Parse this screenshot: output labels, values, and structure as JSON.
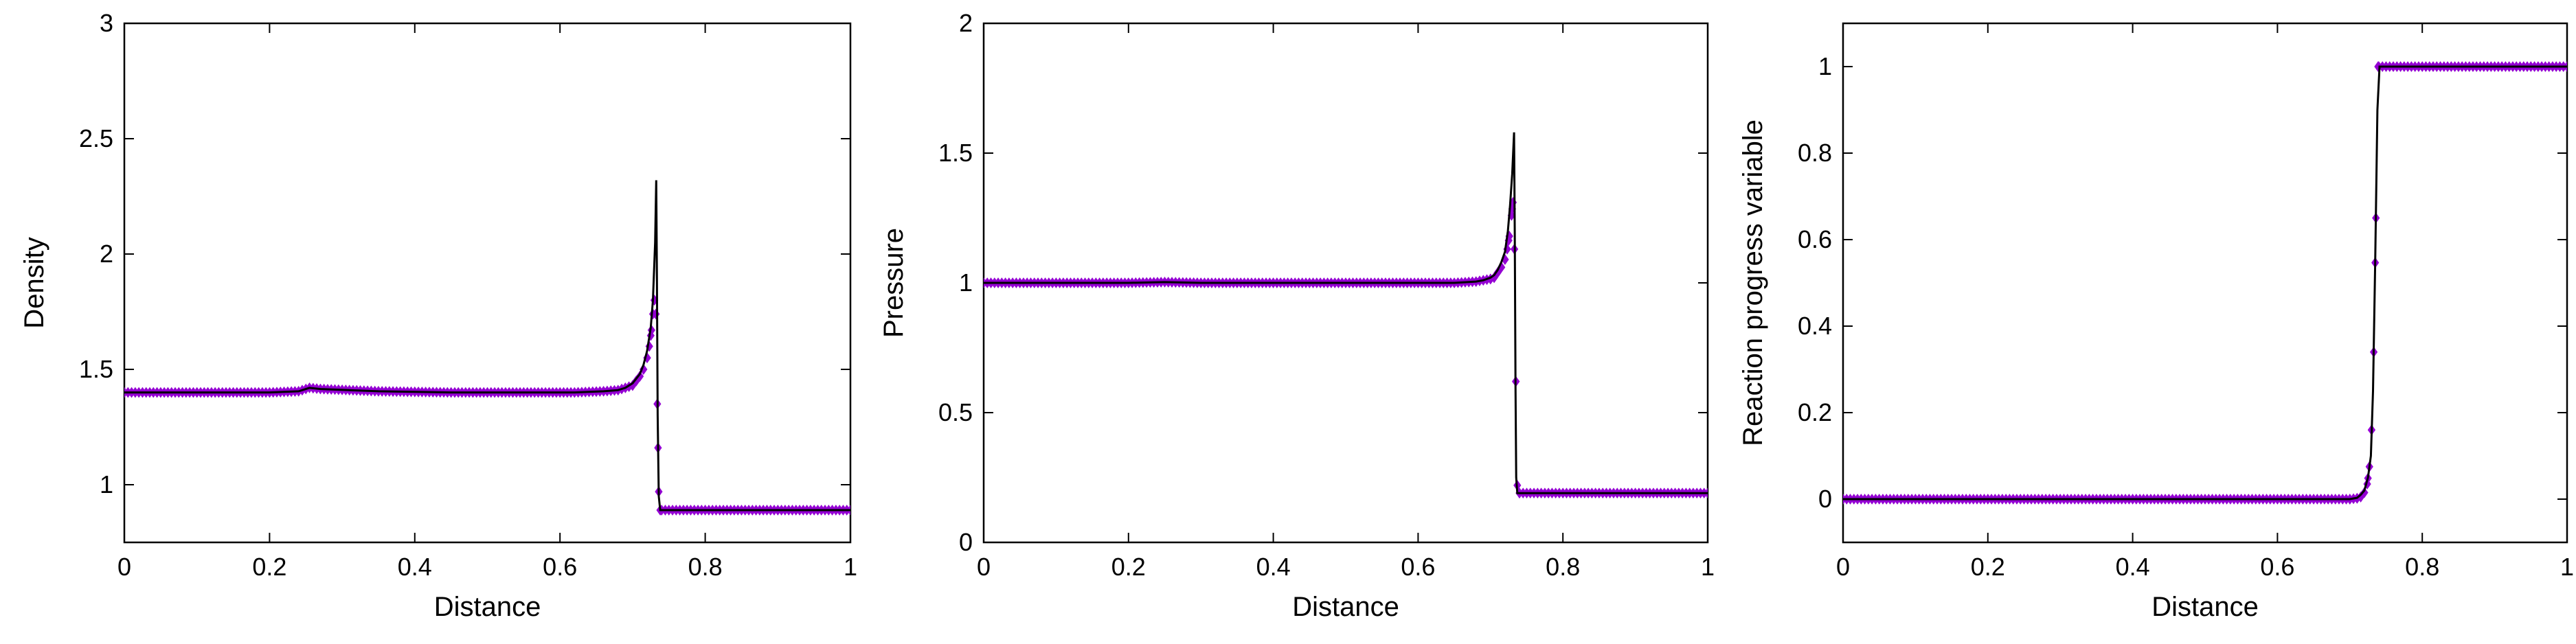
{
  "colors": {
    "reference_line": "#000000",
    "markers": "#9400d3"
  },
  "chart_data": [
    {
      "type": "line",
      "xlabel": "Distance",
      "ylabel": "Density",
      "xlim": [
        0,
        1
      ],
      "ylim": [
        0.75,
        3
      ],
      "xticks": [
        "0",
        "0.2",
        "0.4",
        "0.6",
        "0.8",
        "1"
      ],
      "yticks": [
        "1",
        "1.5",
        "2",
        "2.5",
        "3"
      ],
      "grid": false,
      "series": [
        {
          "style": "line",
          "x": [
            0,
            0.1,
            0.2,
            0.24,
            0.255,
            0.27,
            0.35,
            0.45,
            0.55,
            0.62,
            0.66,
            0.68,
            0.69,
            0.7,
            0.71,
            0.715,
            0.72,
            0.725,
            0.728,
            0.731,
            0.7325,
            0.7335,
            0.7345,
            0.736,
            0.738,
            0.741,
            0.75,
            0.85,
            1.0
          ],
          "y": [
            1.4,
            1.4,
            1.4,
            1.405,
            1.42,
            1.415,
            1.405,
            1.4,
            1.4,
            1.4,
            1.405,
            1.41,
            1.42,
            1.44,
            1.48,
            1.52,
            1.58,
            1.68,
            1.8,
            2.05,
            2.32,
            1.9,
            1.3,
            0.95,
            0.89,
            0.89,
            0.89,
            0.89,
            0.89
          ]
        },
        {
          "style": "markers",
          "x": [
            0,
            0.1,
            0.2,
            0.24,
            0.255,
            0.27,
            0.35,
            0.45,
            0.55,
            0.62,
            0.66,
            0.68,
            0.69,
            0.7,
            0.705,
            0.71,
            0.715,
            0.72,
            0.723,
            0.726,
            0.728,
            0.73,
            0.732,
            0.734,
            0.736,
            0.738,
            0.75,
            0.85,
            1.0
          ],
          "y": [
            1.4,
            1.4,
            1.4,
            1.405,
            1.42,
            1.415,
            1.405,
            1.4,
            1.4,
            1.4,
            1.405,
            1.41,
            1.42,
            1.43,
            1.45,
            1.47,
            1.5,
            1.55,
            1.6,
            1.67,
            1.74,
            1.8,
            1.74,
            1.35,
            0.97,
            0.89,
            0.89,
            0.89,
            0.89
          ]
        }
      ]
    },
    {
      "type": "line",
      "xlabel": "Distance",
      "ylabel": "Pressure",
      "xlim": [
        0,
        1
      ],
      "ylim": [
        0,
        2
      ],
      "xticks": [
        "0",
        "0.2",
        "0.4",
        "0.6",
        "0.8",
        "1"
      ],
      "yticks": [
        "0",
        "0.5",
        "1",
        "1.5",
        "2"
      ],
      "grid": false,
      "series": [
        {
          "style": "line",
          "x": [
            0,
            0.1,
            0.2,
            0.25,
            0.3,
            0.4,
            0.5,
            0.6,
            0.65,
            0.68,
            0.69,
            0.7,
            0.705,
            0.71,
            0.715,
            0.72,
            0.724,
            0.727,
            0.73,
            0.7325,
            0.7335,
            0.7345,
            0.7355,
            0.737,
            0.74,
            0.75,
            0.85,
            1.0
          ],
          "y": [
            1.0,
            1.0,
            1.0,
            1.003,
            1.0,
            1.0,
            1.0,
            1.0,
            1.0,
            1.005,
            1.01,
            1.02,
            1.03,
            1.05,
            1.08,
            1.12,
            1.2,
            1.3,
            1.42,
            1.58,
            1.2,
            0.6,
            0.25,
            0.19,
            0.19,
            0.19,
            0.19,
            0.19
          ]
        },
        {
          "style": "markers",
          "x": [
            0,
            0.1,
            0.2,
            0.25,
            0.3,
            0.4,
            0.5,
            0.6,
            0.65,
            0.68,
            0.69,
            0.7,
            0.705,
            0.71,
            0.715,
            0.72,
            0.723,
            0.726,
            0.729,
            0.731,
            0.733,
            0.735,
            0.737,
            0.74,
            0.75,
            0.85,
            1.0
          ],
          "y": [
            1.0,
            1.0,
            1.0,
            1.003,
            1.0,
            1.0,
            1.0,
            1.0,
            1.0,
            1.005,
            1.01,
            1.015,
            1.02,
            1.04,
            1.06,
            1.09,
            1.13,
            1.18,
            1.26,
            1.31,
            1.13,
            0.62,
            0.22,
            0.19,
            0.19,
            0.19,
            0.19
          ]
        }
      ]
    },
    {
      "type": "line",
      "xlabel": "Distance",
      "ylabel": "Reaction progress variable",
      "xlim": [
        0,
        1
      ],
      "ylim": [
        -0.1,
        1.1
      ],
      "xticks": [
        "0",
        "0.2",
        "0.4",
        "0.6",
        "0.8",
        "1"
      ],
      "yticks": [
        "0",
        "0.2",
        "0.4",
        "0.6",
        "0.8",
        "1"
      ],
      "grid": false,
      "series": [
        {
          "style": "line",
          "x": [
            0,
            0.2,
            0.4,
            0.6,
            0.7,
            0.71,
            0.715,
            0.72,
            0.725,
            0.729,
            0.732,
            0.735,
            0.738,
            0.741,
            0.75,
            0.85,
            1.0
          ],
          "y": [
            0,
            0,
            0,
            0,
            0,
            0.003,
            0.01,
            0.02,
            0.05,
            0.1,
            0.25,
            0.55,
            0.9,
            1.0,
            1.0,
            1.0,
            1.0
          ],
          "markers": false
        },
        {
          "style": "markers",
          "x": [
            0,
            0.2,
            0.4,
            0.6,
            0.7,
            0.71,
            0.715,
            0.72,
            0.724,
            0.727,
            0.73,
            0.733,
            0.736,
            0.739,
            0.75,
            0.85,
            1.0
          ],
          "y": [
            0,
            0,
            0,
            0,
            0,
            0.002,
            0.005,
            0.015,
            0.035,
            0.075,
            0.16,
            0.34,
            0.65,
            1.0,
            1.0,
            1.0,
            1.0
          ]
        }
      ]
    }
  ]
}
